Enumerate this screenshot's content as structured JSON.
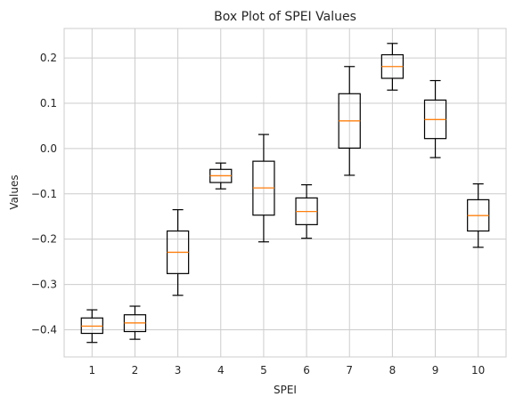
{
  "chart_data": {
    "type": "box",
    "title": "Box Plot of SPEI Values",
    "xlabel": "SPEI",
    "ylabel": "Values",
    "ylim": [
      -0.46,
      0.265
    ],
    "yticks": [
      -0.4,
      -0.3,
      -0.2,
      -0.1,
      0.0,
      0.1,
      0.2
    ],
    "ytick_labels": [
      "−0.4",
      "−0.3",
      "−0.2",
      "−0.1",
      "0.0",
      "0.1",
      "0.2"
    ],
    "grid": true,
    "colors": {
      "box": "#000000",
      "median": "#ff7f0e",
      "grid": "#cccccc"
    },
    "categories": [
      "1",
      "2",
      "3",
      "4",
      "5",
      "6",
      "7",
      "8",
      "9",
      "10"
    ],
    "boxes": [
      {
        "min": -0.428,
        "q1": -0.408,
        "median": -0.392,
        "q3": -0.374,
        "max": -0.356
      },
      {
        "min": -0.421,
        "q1": -0.404,
        "median": -0.385,
        "q3": -0.367,
        "max": -0.348
      },
      {
        "min": -0.324,
        "q1": -0.276,
        "median": -0.229,
        "q3": -0.182,
        "max": -0.135
      },
      {
        "min": -0.089,
        "q1": -0.075,
        "median": -0.06,
        "q3": -0.046,
        "max": -0.032
      },
      {
        "min": -0.206,
        "q1": -0.147,
        "median": -0.087,
        "q3": -0.028,
        "max": 0.031
      },
      {
        "min": -0.198,
        "q1": -0.168,
        "median": -0.139,
        "q3": -0.109,
        "max": -0.08
      },
      {
        "min": -0.059,
        "q1": 0.001,
        "median": 0.061,
        "q3": 0.121,
        "max": 0.181
      },
      {
        "min": 0.129,
        "q1": 0.155,
        "median": 0.181,
        "q3": 0.207,
        "max": 0.232
      },
      {
        "min": -0.02,
        "q1": 0.022,
        "median": 0.064,
        "q3": 0.107,
        "max": 0.15
      },
      {
        "min": -0.218,
        "q1": -0.182,
        "median": -0.148,
        "q3": -0.113,
        "max": -0.078
      }
    ]
  }
}
